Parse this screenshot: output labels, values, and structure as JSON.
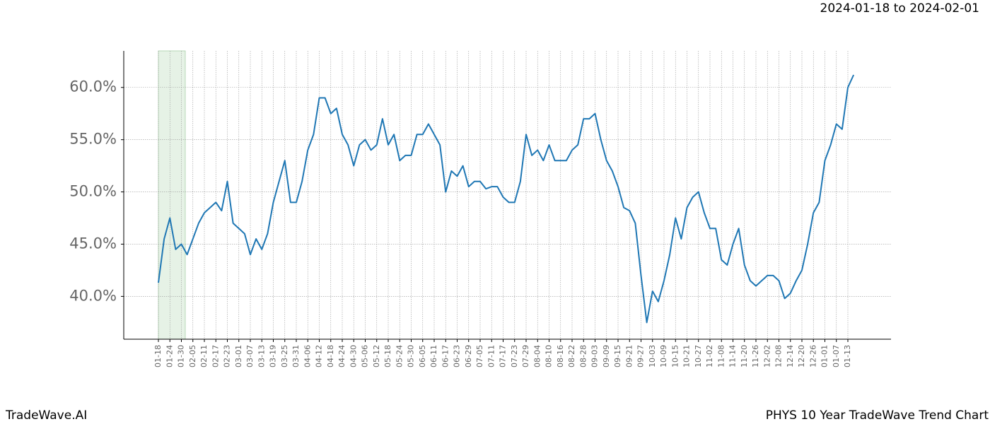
{
  "chart_data": {
    "type": "line",
    "title": "2024-01-18 to 2024-02-01",
    "footer_left": "TradeWave.AI",
    "footer_right": "PHYS 10 Year TradeWave Trend Chart",
    "categories": [
      "01-18",
      null,
      "01-24",
      null,
      "01-30",
      null,
      "02-05",
      null,
      "02-11",
      null,
      "02-17",
      null,
      "02-23",
      null,
      "03-01",
      null,
      "03-07",
      null,
      "03-13",
      null,
      "03-19",
      null,
      "03-25",
      null,
      "03-31",
      null,
      "04-06",
      null,
      "04-12",
      null,
      "04-18",
      null,
      "04-24",
      null,
      "04-30",
      null,
      "05-06",
      null,
      "05-12",
      null,
      "05-18",
      null,
      "05-24",
      null,
      "05-30",
      null,
      "06-05",
      null,
      "06-11",
      null,
      "06-17",
      null,
      "06-23",
      null,
      "06-29",
      null,
      "07-05",
      null,
      "07-11",
      null,
      "07-17",
      null,
      "07-23",
      null,
      "07-29",
      null,
      "08-04",
      null,
      "08-10",
      null,
      "08-16",
      null,
      "08-22",
      null,
      "08-28",
      null,
      "09-03",
      null,
      "09-09",
      null,
      "09-15",
      null,
      "09-21",
      null,
      "09-27",
      null,
      "10-03",
      null,
      "10-09",
      null,
      "10-15",
      null,
      "10-21",
      null,
      "10-27",
      null,
      "11-02",
      null,
      "11-08",
      null,
      "11-14",
      null,
      "11-20",
      null,
      "11-26",
      null,
      "12-02",
      null,
      "12-08",
      null,
      "12-14",
      null,
      "12-20",
      null,
      "12-26",
      null,
      "01-01",
      null,
      "01-07",
      null,
      "01-13",
      null
    ],
    "values": [
      41.3,
      45.5,
      47.5,
      44.5,
      45,
      44,
      45.5,
      47,
      48,
      48.5,
      49,
      48.2,
      51,
      47,
      46.5,
      46,
      44,
      45.5,
      44.5,
      46,
      49,
      51,
      53,
      49,
      49,
      51,
      54,
      55.5,
      59,
      59,
      57.5,
      58,
      55.5,
      54.5,
      52.5,
      54.5,
      55,
      54,
      54.5,
      57,
      54.5,
      55.5,
      53,
      53.5,
      53.5,
      55.5,
      55.5,
      56.5,
      55.5,
      54.5,
      50,
      52,
      51.5,
      52.5,
      50.5,
      51,
      51,
      50.3,
      50.5,
      50.5,
      49.5,
      49,
      49,
      51,
      55.5,
      53.5,
      54,
      53,
      54.5,
      53,
      53,
      53,
      54,
      54.5,
      57,
      57,
      57.5,
      55,
      53,
      52,
      50.5,
      48.5,
      48.2,
      47,
      42,
      37.5,
      40.5,
      39.5,
      41.5,
      44,
      47.5,
      45.5,
      48.5,
      49.5,
      50,
      48,
      46.5,
      46.5,
      43.5,
      43,
      45,
      46.5,
      43,
      41.5,
      41,
      41.5,
      42,
      42,
      41.5,
      39.8,
      40.3,
      41.5,
      42.5,
      45,
      48,
      49,
      53,
      54.5,
      56.5,
      56,
      60,
      61.2
    ],
    "color": "#1f77b4",
    "ylim": [
      35.9,
      63.5
    ],
    "yticks": [
      {
        "value": 40,
        "label": "40.0%"
      },
      {
        "value": 45,
        "label": "45.0%"
      },
      {
        "value": 50,
        "label": "50.0%"
      },
      {
        "value": 55,
        "label": "55.0%"
      },
      {
        "value": 60,
        "label": "60.0%"
      }
    ],
    "grid": true
  }
}
